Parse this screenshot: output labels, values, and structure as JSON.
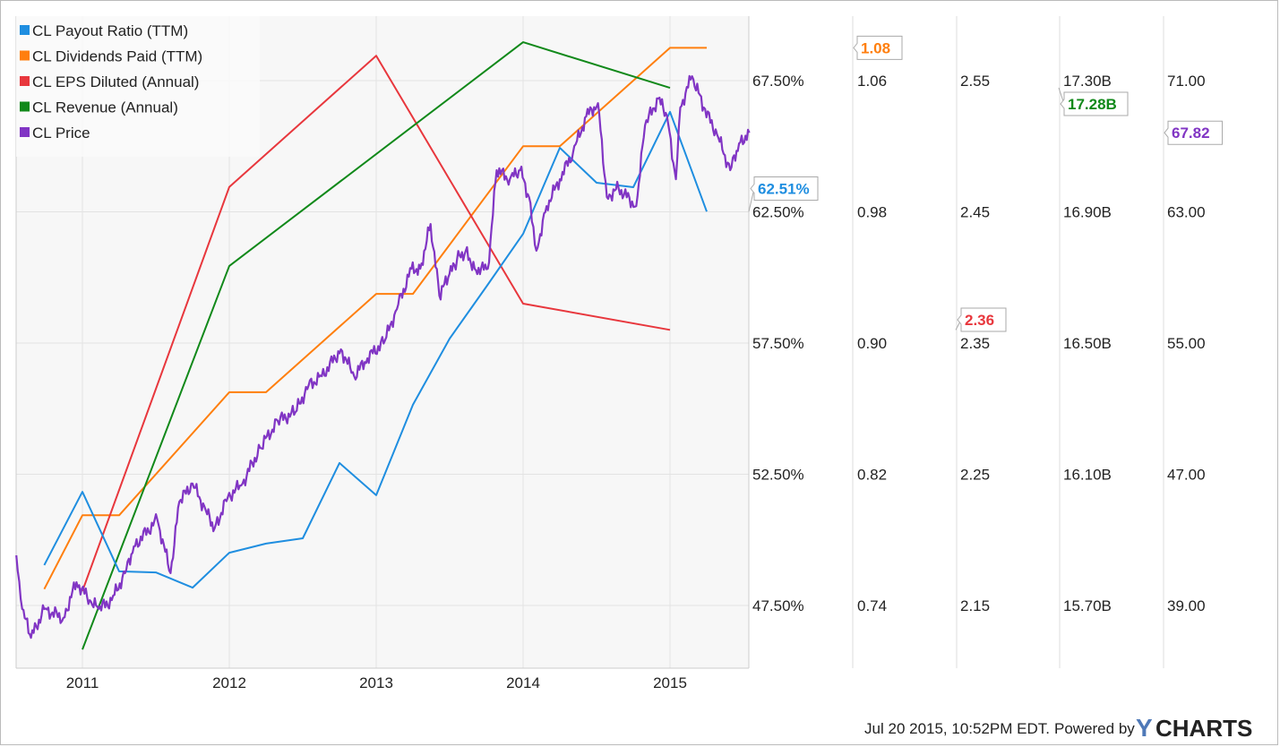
{
  "chart_data": {
    "type": "line",
    "xlim": [
      2010.55,
      2015.54
    ],
    "x_ticks": [
      2011,
      2012,
      2013,
      2014,
      2015
    ],
    "x_tick_labels": [
      "2011",
      "2012",
      "2013",
      "2014",
      "2015"
    ],
    "legend_position": "top-left",
    "grid": true,
    "axes": [
      {
        "id": "payout",
        "ticks": [
          "67.50%",
          "62.50%",
          "57.50%",
          "52.50%",
          "47.50%"
        ],
        "range": [
          47.5,
          67.5
        ]
      },
      {
        "id": "dividends",
        "ticks": [
          "1.06",
          "0.98",
          "0.90",
          "0.82",
          "0.74"
        ],
        "range": [
          0.74,
          1.06
        ]
      },
      {
        "id": "eps",
        "ticks": [
          "2.55",
          "2.45",
          "2.35",
          "2.25",
          "2.15"
        ],
        "range": [
          2.15,
          2.55
        ]
      },
      {
        "id": "revenue",
        "ticks": [
          "17.30B",
          "16.90B",
          "16.50B",
          "16.10B",
          "15.70B"
        ],
        "range": [
          15.7,
          17.3
        ]
      },
      {
        "id": "price",
        "ticks": [
          "71.00",
          "63.00",
          "55.00",
          "47.00",
          "39.00"
        ],
        "range": [
          39,
          71
        ]
      }
    ],
    "series": [
      {
        "name": "CL Payout Ratio (TTM)",
        "axis": "payout",
        "color": "#1f8ee0",
        "last_label": "62.51%",
        "x": [
          2010.74,
          2011.0,
          2011.25,
          2011.5,
          2011.75,
          2012.0,
          2012.25,
          2012.5,
          2012.75,
          2013.0,
          2013.25,
          2013.5,
          2013.75,
          2014.0,
          2014.25,
          2014.5,
          2014.75,
          2015.0,
          2015.25
        ],
        "y": [
          49.04,
          51.83,
          48.8,
          48.76,
          48.18,
          49.51,
          49.86,
          50.06,
          52.93,
          51.7,
          55.15,
          57.67,
          59.65,
          61.66,
          64.94,
          63.61,
          63.44,
          66.31,
          62.51
        ]
      },
      {
        "name": "CL Dividends Paid (TTM)",
        "axis": "dividends",
        "color": "#ff7f0e",
        "last_label": "1.08",
        "x": [
          2010.74,
          2011.0,
          2011.25,
          2012.0,
          2012.25,
          2013.0,
          2013.25,
          2014.0,
          2014.25,
          2015.0,
          2015.25
        ],
        "y": [
          0.75,
          0.795,
          0.795,
          0.87,
          0.87,
          0.93,
          0.93,
          1.02,
          1.02,
          1.08,
          1.08
        ]
      },
      {
        "name": "CL EPS Diluted (Annual)",
        "axis": "eps",
        "color": "#e8373d",
        "last_label": "2.36",
        "x": [
          2011.0,
          2012.0,
          2013.0,
          2014.0,
          2015.0
        ],
        "y": [
          2.161,
          2.469,
          2.569,
          2.38,
          2.36
        ]
      },
      {
        "name": "CL Revenue (Annual)",
        "axis": "revenue",
        "color": "#11891a",
        "last_label": "17.28B",
        "x": [
          2011.0,
          2012.0,
          2014.0,
          2015.0
        ],
        "y": [
          15.566,
          16.735,
          17.417,
          17.278
        ]
      },
      {
        "name": "CL Price",
        "axis": "price",
        "color": "#8135c4",
        "last_label": "67.82",
        "x": [
          2010.55,
          2010.59,
          2010.65,
          2010.74,
          2010.87,
          2010.96,
          2011.05,
          2011.11,
          2011.2,
          2011.29,
          2011.35,
          2011.51,
          2011.6,
          2011.66,
          2011.75,
          2011.84,
          2011.9,
          2011.99,
          2012.09,
          2012.21,
          2012.33,
          2012.45,
          2012.54,
          2012.63,
          2012.76,
          2012.85,
          2012.94,
          2013.06,
          2013.15,
          2013.24,
          2013.3,
          2013.37,
          2013.43,
          2013.49,
          2013.55,
          2013.61,
          2013.67,
          2013.76,
          2013.82,
          2013.91,
          2013.98,
          2014.04,
          2014.09,
          2014.16,
          2014.25,
          2014.34,
          2014.43,
          2014.51,
          2014.57,
          2014.65,
          2014.77,
          2014.83,
          2014.92,
          2014.98,
          2015.04,
          2015.07,
          2015.15,
          2015.23,
          2015.32,
          2015.41,
          2015.47,
          2015.54
        ],
        "y": [
          42.06,
          38.78,
          37.03,
          38.78,
          38.24,
          40.42,
          39.33,
          38.78,
          39.33,
          40.97,
          42.6,
          44.24,
          40.97,
          45.33,
          46.43,
          44.79,
          43.7,
          45.61,
          46.43,
          48.61,
          50.25,
          50.79,
          52.43,
          52.98,
          54.62,
          52.98,
          54.07,
          55.16,
          57.35,
          59.53,
          59.53,
          62.26,
          57.89,
          58.99,
          60.08,
          60.63,
          59.53,
          59.53,
          65.54,
          64.99,
          65.54,
          63.9,
          60.63,
          63.35,
          64.99,
          66.63,
          68.82,
          69.63,
          63.9,
          64.44,
          63.35,
          68.27,
          69.91,
          68.82,
          64.99,
          69.36,
          71.27,
          69.36,
          67.72,
          65.54,
          67.17,
          67.82
        ]
      }
    ]
  },
  "footer": {
    "timestamp": "Jul 20 2015, 10:52PM EDT.",
    "powered_by": "Powered by",
    "brand": "YCHARTS",
    "brand_y": "Y",
    "brand_rest": "CHARTS"
  }
}
